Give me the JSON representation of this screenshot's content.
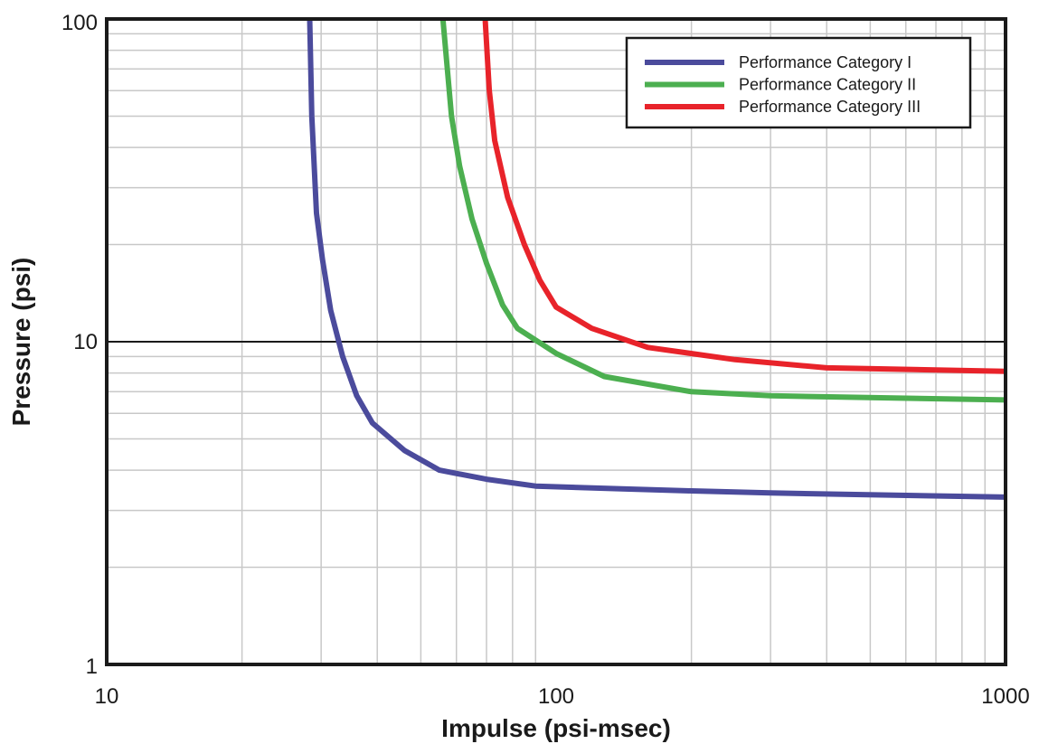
{
  "chart_data": {
    "type": "line",
    "title": "",
    "xlabel": "Impulse (psi-msec)",
    "ylabel": "Pressure (psi)",
    "x_scale": "log",
    "y_scale": "log",
    "xlim": [
      10,
      1000
    ],
    "ylim": [
      1,
      100
    ],
    "x_ticks": [
      "10",
      "100",
      "1000"
    ],
    "y_ticks": [
      "1",
      "10",
      "100"
    ],
    "grid": true,
    "legend_position": "top-right",
    "series": [
      {
        "name": "Performance Category I",
        "color": "#4b4b9c",
        "points": [
          [
            28.3,
            100
          ],
          [
            28.6,
            50
          ],
          [
            29.3,
            25
          ],
          [
            30.2,
            18
          ],
          [
            31.5,
            12.5
          ],
          [
            33.5,
            9
          ],
          [
            36,
            6.8
          ],
          [
            39,
            5.6
          ],
          [
            46,
            4.6
          ],
          [
            55,
            4.0
          ],
          [
            70,
            3.75
          ],
          [
            90,
            3.57
          ],
          [
            140,
            3.5
          ],
          [
            200,
            3.45
          ],
          [
            300,
            3.4
          ],
          [
            1000,
            3.3
          ]
        ]
      },
      {
        "name": "Performance Category II",
        "color": "#4caf50",
        "points": [
          [
            56,
            100
          ],
          [
            58.5,
            50
          ],
          [
            61,
            35
          ],
          [
            65,
            24
          ],
          [
            70,
            17.5
          ],
          [
            76,
            13
          ],
          [
            82,
            11
          ],
          [
            100,
            9.2
          ],
          [
            128,
            7.8
          ],
          [
            200,
            7.0
          ],
          [
            300,
            6.8
          ],
          [
            1000,
            6.6
          ]
        ]
      },
      {
        "name": "Performance Category III",
        "color": "#e8232a",
        "points": [
          [
            69.5,
            100
          ],
          [
            71,
            60
          ],
          [
            73,
            42
          ],
          [
            78,
            28
          ],
          [
            85,
            20
          ],
          [
            92,
            15.5
          ],
          [
            100,
            12.8
          ],
          [
            120,
            11
          ],
          [
            160,
            9.6
          ],
          [
            250,
            8.8
          ],
          [
            400,
            8.3
          ],
          [
            1000,
            8.1
          ]
        ]
      }
    ]
  }
}
